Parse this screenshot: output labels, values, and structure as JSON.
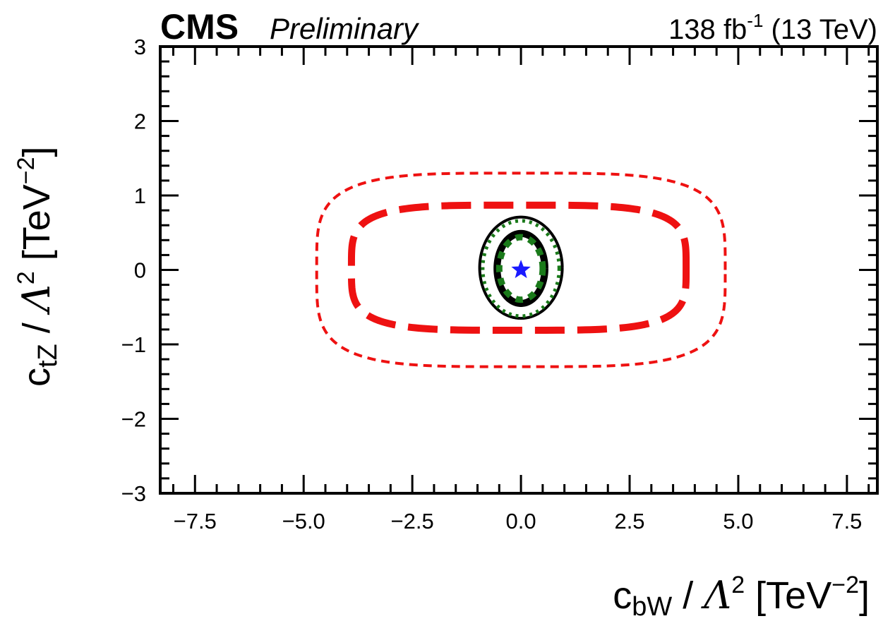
{
  "header": {
    "experiment": "CMS",
    "status": "Preliminary",
    "lumi_value": "138",
    "lumi_unit": "fb",
    "lumi_exp": "-1",
    "energy": "(13 TeV)"
  },
  "axes": {
    "x_title": {
      "main": "c",
      "sub": "bW",
      "mid": " / ",
      "lambda": "Λ",
      "pow": "2",
      "unit_open": " [TeV",
      "unit_exp": "−2",
      "unit_close": "]"
    },
    "y_title": {
      "main": "c",
      "sub": "tZ",
      "mid": " / ",
      "lambda": "Λ",
      "pow": "2",
      "unit_open": " [TeV",
      "unit_exp": "−2",
      "unit_close": "]"
    }
  },
  "chart_data": {
    "type": "contour",
    "xlim": [
      -8.3,
      8.2
    ],
    "ylim": [
      -3,
      3
    ],
    "x_ticks": [
      -7.5,
      -5.0,
      -2.5,
      0.0,
      2.5,
      5.0,
      7.5
    ],
    "x_tick_labels": [
      "−7.5",
      "−5.0",
      "−2.5",
      "0.0",
      "2.5",
      "5.0",
      "7.5"
    ],
    "y_ticks": [
      -3,
      -2,
      -1,
      0,
      1,
      2,
      3
    ],
    "y_tick_labels": [
      "−3",
      "−2",
      "−1",
      "0",
      "1",
      "2",
      "3"
    ],
    "grid": false,
    "best_fit": {
      "x": 0.0,
      "y": 0.0,
      "marker": "star",
      "color": "#1a1aff"
    },
    "contours": [
      {
        "x0": 0.0,
        "y0": 0.0,
        "ax": 4.7,
        "ay": 1.3,
        "n": 4,
        "color": "#ee1111",
        "style": "dashed"
      },
      {
        "x0": -0.05,
        "y0": 0.03,
        "ax": 3.85,
        "ay": 0.84,
        "n": 4,
        "color": "#ee1111",
        "style": "long-dashed"
      },
      {
        "x0": 0.0,
        "y0": 0.03,
        "ax": 0.95,
        "ay": 0.68,
        "n": 2,
        "color": "#000000",
        "style": "solid"
      },
      {
        "x0": 0.0,
        "y0": 0.02,
        "ax": 0.55,
        "ay": 0.47,
        "n": 2,
        "color": "#000000",
        "style": "solid-thick"
      },
      {
        "x0": 0.0,
        "y0": 0.02,
        "ax": 0.88,
        "ay": 0.64,
        "n": 2,
        "color": "#1a7a1a",
        "style": "dotted"
      },
      {
        "x0": 0.0,
        "y0": 0.02,
        "ax": 0.5,
        "ay": 0.42,
        "n": 2,
        "color": "#1a7a1a",
        "style": "dotted-thick"
      }
    ]
  }
}
